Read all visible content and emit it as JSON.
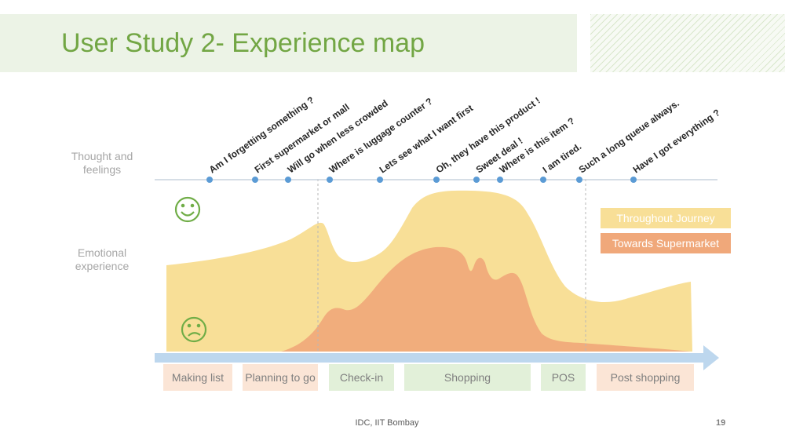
{
  "title": "User Study 2- Experience map",
  "rows": {
    "thought_label": "Thought and\nfeelings",
    "emotion_label": "Emotional\nexperience"
  },
  "thoughts": [
    "Am I forgetting something ?",
    "First supermarket or mall",
    "Will go when less crowded",
    "Where is luggage counter ?",
    "Lets see what I want first",
    "Oh, they have this product !",
    "Sweet deal !",
    "Where is this item ?",
    "I am tired.",
    "Such a long queue always.",
    "Have I got everything ?"
  ],
  "emotion_icons": {
    "happy": "happy-face-icon",
    "sad": "sad-face-icon"
  },
  "legend": {
    "throughout": "Throughout Journey",
    "supermarket": "Towards Supermarket"
  },
  "stages": [
    {
      "label": "Making list",
      "color": "orange"
    },
    {
      "label": "Planning to go",
      "color": "orange"
    },
    {
      "label": "Check-in",
      "color": "green"
    },
    {
      "label": "Shopping",
      "color": "green"
    },
    {
      "label": "POS",
      "color": "green"
    },
    {
      "label": "Post shopping",
      "color": "orange"
    }
  ],
  "colors": {
    "accent_green": "#72a644",
    "journey_area": "#f8df97",
    "supermarket_area": "#f0a87a",
    "timeline_arrow": "#bdd7ee",
    "dot": "#5b9bd5"
  },
  "footer": {
    "center": "IDC, IIT Bombay",
    "page": "19"
  }
}
